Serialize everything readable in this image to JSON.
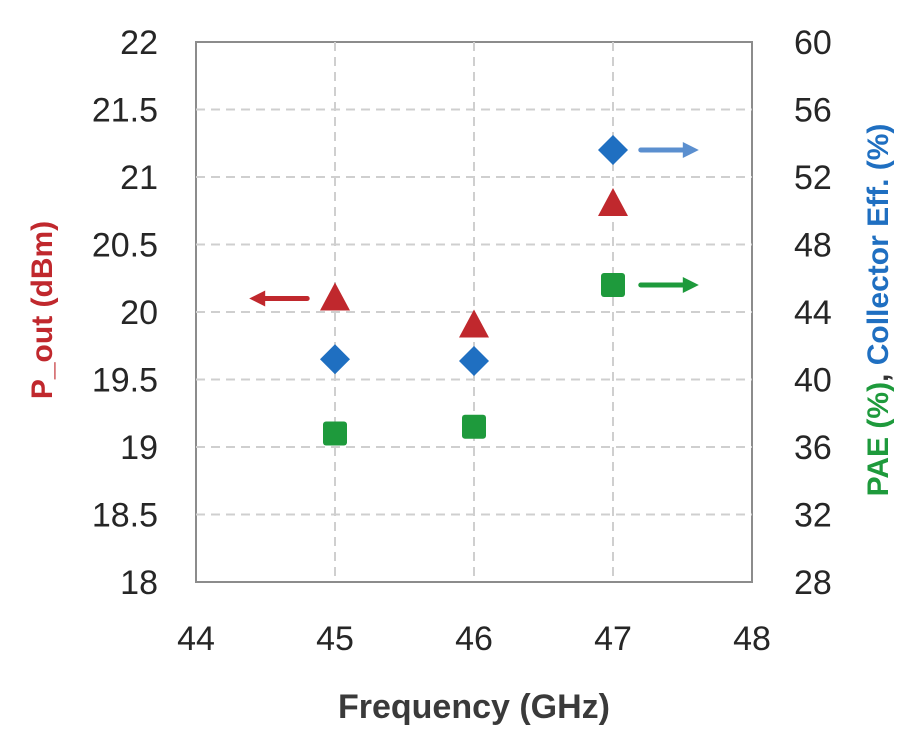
{
  "chart_data": {
    "type": "scatter",
    "xlabel": "Frequency (GHz)",
    "ylabel_left": "P_out (dBm)",
    "ylabel_right_parts": [
      {
        "text": "PAE (%)",
        "color": "#1e9a3c"
      },
      {
        "text": ", ",
        "color": "#333333"
      },
      {
        "text": "Collector Eff. (%)",
        "color": "#1f6fc1"
      }
    ],
    "xlim": [
      44,
      48
    ],
    "xticks": [
      44,
      45,
      46,
      47,
      48
    ],
    "ylim_left": [
      18,
      22
    ],
    "yticks_left": [
      18,
      18.5,
      19,
      19.5,
      20,
      20.5,
      21,
      21.5,
      22
    ],
    "ylim_right": [
      28,
      60
    ],
    "yticks_right": [
      28,
      32,
      36,
      40,
      44,
      48,
      52,
      56,
      60
    ],
    "grid": true,
    "series": [
      {
        "name": "P_out (dBm)",
        "axis": "left",
        "marker": "triangle",
        "color": "#c0282d",
        "x": [
          45,
          46,
          47
        ],
        "y": [
          20.1,
          19.9,
          20.8
        ]
      },
      {
        "name": "Collector Eff. (%)",
        "axis": "right",
        "marker": "diamond",
        "color": "#1f6fc1",
        "x": [
          45,
          46,
          47
        ],
        "y": [
          41.2,
          41.1,
          53.6
        ]
      },
      {
        "name": "PAE (%)",
        "axis": "right",
        "marker": "square",
        "color": "#1e9a3c",
        "x": [
          45,
          46,
          47
        ],
        "y": [
          36.8,
          37.2,
          45.6
        ]
      }
    ],
    "axis_arrows": [
      {
        "series": "P_out (dBm)",
        "direction": "left",
        "x": 44.8,
        "y": 20.1,
        "color": "#c0282d"
      },
      {
        "series": "Collector Eff. (%)",
        "direction": "right",
        "x": 47.2,
        "y": 53.6,
        "color": "#5b8fcf"
      },
      {
        "series": "PAE (%)",
        "direction": "right",
        "x": 47.2,
        "y": 45.6,
        "color": "#1e9a3c"
      }
    ]
  }
}
